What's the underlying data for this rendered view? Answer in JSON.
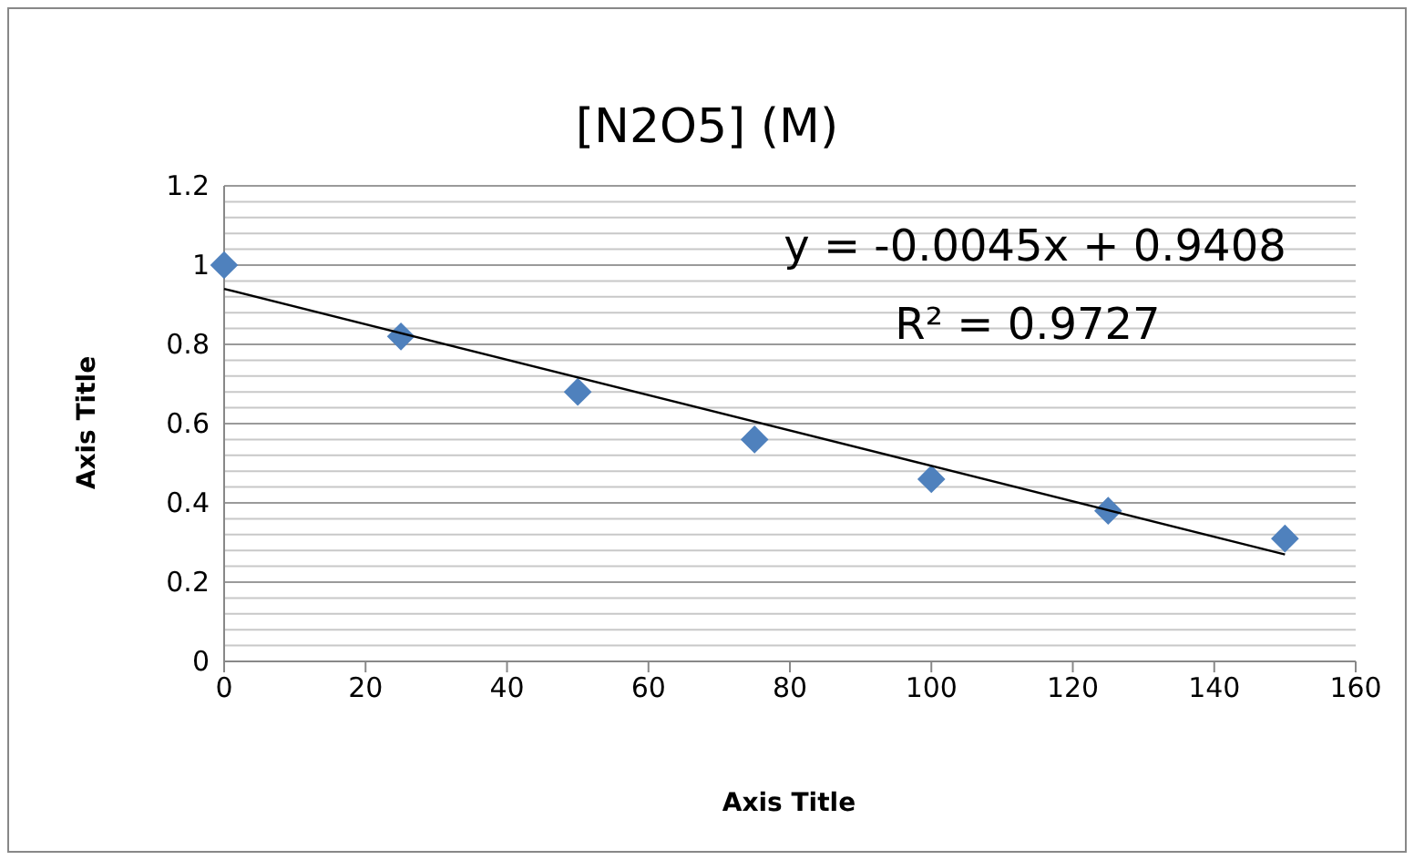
{
  "chart_data": {
    "type": "scatter",
    "title": "[N2O5] (M)",
    "xlabel": "Axis Title",
    "ylabel": "Axis Title",
    "x": [
      0,
      25,
      50,
      75,
      100,
      125,
      150
    ],
    "series": [
      {
        "color": "#4f81bd",
        "values": [
          1.0,
          0.82,
          0.68,
          0.56,
          0.46,
          0.38,
          0.31
        ]
      },
      {
        "type": "line",
        "color": "#000000",
        "marker": "none",
        "x": [
          0,
          150
        ],
        "values": [
          0.94,
          0.27
        ]
      }
    ],
    "xlim": [
      0,
      160
    ],
    "xticks": [
      0,
      20,
      40,
      60,
      80,
      100,
      120,
      140,
      160
    ],
    "ylim": [
      0,
      1.2
    ],
    "yticks": [
      0,
      {
        "value": 0.04,
        "label": null
      },
      {
        "value": 0.08,
        "label": null
      },
      {
        "value": 0.12,
        "label": null
      },
      {
        "value": 0.16,
        "label": null
      },
      0.2,
      {
        "value": 0.24,
        "label": null
      },
      {
        "value": 0.28,
        "label": null
      },
      {
        "value": 0.32,
        "label": null
      },
      {
        "value": 0.36,
        "label": null
      },
      0.4,
      {
        "value": 0.44,
        "label": null
      },
      {
        "value": 0.48,
        "label": null
      },
      {
        "value": 0.52,
        "label": null
      },
      {
        "value": 0.56,
        "label": null
      },
      0.6,
      {
        "value": 0.64,
        "label": null
      },
      {
        "value": 0.68,
        "label": null
      },
      {
        "value": 0.72,
        "label": null
      },
      {
        "value": 0.76,
        "label": null
      },
      0.8,
      {
        "value": 0.84,
        "label": null
      },
      {
        "value": 0.88,
        "label": null
      },
      {
        "value": 0.92,
        "label": null
      },
      {
        "value": 0.96,
        "label": null
      },
      1,
      {
        "value": 1.04,
        "label": null
      },
      {
        "value": 1.08,
        "label": null
      },
      {
        "value": 1.12,
        "label": null
      },
      {
        "value": 1.16,
        "label": null
      },
      1.2
    ],
    "grid": "y",
    "marker": "diamond",
    "annotations": [
      "y = -0.0045x + 0.9408",
      "R² = 0.9727"
    ]
  }
}
